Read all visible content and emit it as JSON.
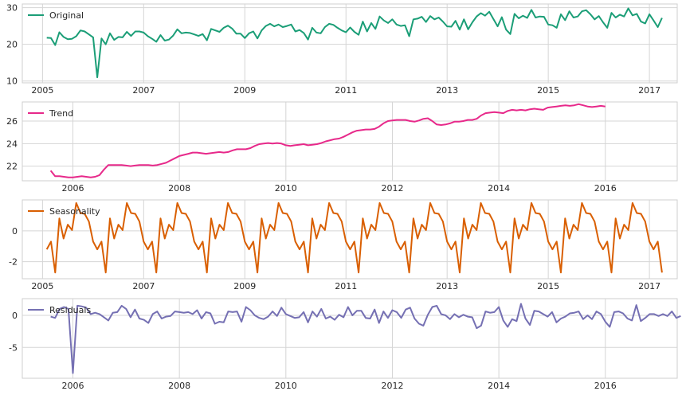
{
  "chart_data": [
    {
      "type": "line",
      "legend": "Original",
      "color": "#1b9e77",
      "x_ticks": [
        "2005",
        "2007",
        "2009",
        "2011",
        "2013",
        "2015",
        "2017"
      ],
      "y_ticks": [
        "10",
        "20",
        "30"
      ],
      "x_range": [
        2004.6,
        2017.55
      ],
      "y_range": [
        9.5,
        31
      ],
      "grid": true,
      "legend_position": "upper-left",
      "x_start": 2005.0833,
      "x_step": 0.08333,
      "y": [
        21.8,
        21.7,
        19.8,
        23.3,
        22.0,
        21.4,
        21.5,
        22.2,
        23.8,
        23.5,
        22.7,
        21.9,
        11.0,
        21.6,
        20.0,
        23.0,
        21.2,
        22.0,
        21.9,
        23.4,
        22.3,
        23.5,
        23.5,
        23.2,
        22.2,
        21.5,
        20.7,
        22.5,
        21.0,
        21.3,
        22.4,
        24.1,
        23.0,
        23.2,
        23.1,
        22.7,
        22.3,
        22.8,
        21.1,
        24.2,
        23.8,
        23.4,
        24.5,
        25.1,
        24.3,
        22.9,
        22.9,
        21.7,
        23.0,
        23.5,
        21.6,
        23.8,
        25.0,
        25.6,
        24.9,
        25.4,
        24.7,
        25.0,
        25.4,
        23.5,
        23.9,
        23.1,
        21.3,
        24.5,
        23.2,
        23.0,
        24.7,
        25.6,
        25.3,
        24.5,
        23.8,
        23.3,
        24.6,
        23.4,
        22.6,
        26.2,
        23.5,
        25.8,
        24.2,
        27.6,
        26.5,
        25.8,
        26.8,
        25.4,
        25.0,
        25.2,
        22.2,
        26.8,
        27.0,
        27.5,
        26.1,
        27.7,
        26.8,
        27.3,
        26.2,
        24.9,
        24.8,
        26.4,
        24.0,
        26.8,
        24.1,
        26.0,
        27.6,
        28.5,
        27.8,
        28.9,
        26.9,
        24.9,
        27.4,
        24.0,
        22.8,
        28.3,
        27.1,
        27.8,
        27.2,
        29.4,
        27.3,
        27.6,
        27.5,
        25.4,
        25.2,
        24.5,
        28.2,
        26.6,
        29.0,
        27.3,
        27.6,
        29.0,
        29.3,
        28.2,
        26.8,
        27.7,
        26.0,
        24.5,
        28.6,
        27.3,
        28.1,
        27.6,
        29.8,
        27.9,
        28.3,
        26.2,
        25.7,
        28.2,
        26.5,
        24.7,
        27.2
      ]
    },
    {
      "type": "line",
      "legend": "Trend",
      "color": "#e7298a",
      "x_ticks": [
        "2006",
        "2008",
        "2010",
        "2012",
        "2014",
        "2016"
      ],
      "y_ticks": [
        "22",
        "24",
        "26"
      ],
      "x_range": [
        2005.05,
        2017.35
      ],
      "y_range": [
        20.7,
        27.7
      ],
      "grid": true,
      "legend_position": "upper-left",
      "x_start": 2005.5833,
      "x_step": 0.08333,
      "y": [
        21.6,
        21.1,
        21.1,
        21.05,
        21.0,
        21.0,
        21.05,
        21.1,
        21.05,
        21.0,
        21.05,
        21.2,
        21.7,
        22.1,
        22.1,
        22.1,
        22.1,
        22.05,
        22.0,
        22.05,
        22.1,
        22.1,
        22.1,
        22.05,
        22.1,
        22.2,
        22.3,
        22.5,
        22.7,
        22.9,
        23.0,
        23.1,
        23.2,
        23.2,
        23.15,
        23.1,
        23.15,
        23.2,
        23.25,
        23.2,
        23.25,
        23.4,
        23.5,
        23.5,
        23.5,
        23.6,
        23.8,
        23.95,
        24.0,
        24.05,
        24.0,
        24.05,
        24.0,
        23.85,
        23.8,
        23.85,
        23.9,
        23.95,
        23.85,
        23.9,
        23.95,
        24.05,
        24.2,
        24.3,
        24.4,
        24.45,
        24.6,
        24.8,
        25.0,
        25.15,
        25.2,
        25.25,
        25.25,
        25.3,
        25.5,
        25.8,
        26.0,
        26.05,
        26.1,
        26.1,
        26.1,
        26.0,
        25.95,
        26.05,
        26.2,
        26.25,
        26.0,
        25.7,
        25.65,
        25.7,
        25.8,
        25.95,
        25.95,
        26.0,
        26.1,
        26.1,
        26.2,
        26.5,
        26.7,
        26.75,
        26.8,
        26.75,
        26.7,
        26.9,
        27.0,
        26.95,
        27.0,
        26.95,
        27.05,
        27.1,
        27.05,
        27.0,
        27.2,
        27.25,
        27.3,
        27.35,
        27.4,
        27.35,
        27.4,
        27.5,
        27.4,
        27.3,
        27.25,
        27.3,
        27.35,
        27.3
      ]
    },
    {
      "type": "line",
      "legend": "Seasonality",
      "color": "#d95f02",
      "x_ticks": [
        "2005",
        "2007",
        "2009",
        "2011",
        "2013",
        "2015",
        "2017"
      ],
      "y_ticks": [
        "-2",
        "0"
      ],
      "x_range": [
        2004.6,
        2017.55
      ],
      "y_range": [
        -3.1,
        2.0
      ],
      "grid": true,
      "legend_position": "upper-left",
      "x_start": 2005.0833,
      "x_step": 0.08333,
      "pattern": [
        -1.2,
        -0.7,
        -2.7,
        0.8,
        -0.5,
        0.4,
        0.05,
        1.8,
        1.15,
        1.1,
        0.6,
        -0.7
      ],
      "pattern_cycles": 12.25
    },
    {
      "type": "line",
      "legend": "Residuals",
      "color": "#7570b3",
      "x_ticks": [
        "2006",
        "2008",
        "2010",
        "2012",
        "2014",
        "2016"
      ],
      "y_ticks": [
        "-5",
        "0"
      ],
      "x_range": [
        2005.05,
        2017.35
      ],
      "y_range": [
        -9.8,
        2.6
      ],
      "grid": true,
      "legend_position": "upper-left",
      "x_start": 2005.5833,
      "x_step": 0.08333,
      "y": [
        -0.2,
        -0.4,
        1.0,
        1.3,
        1.0,
        -9.0,
        1.5,
        1.4,
        1.2,
        0.2,
        0.4,
        0.2,
        -0.3,
        -0.8,
        0.4,
        0.5,
        1.5,
        1.0,
        -0.3,
        0.9,
        -0.5,
        -0.7,
        -1.2,
        0.2,
        0.6,
        -0.5,
        -0.2,
        -0.1,
        0.6,
        0.5,
        0.4,
        0.5,
        0.2,
        0.8,
        -0.5,
        0.5,
        0.3,
        -1.3,
        -1.0,
        -1.1,
        0.6,
        0.5,
        0.6,
        -1.0,
        1.3,
        0.8,
        0.0,
        -0.4,
        -0.6,
        -0.2,
        0.6,
        -0.1,
        1.2,
        0.2,
        -0.1,
        -0.4,
        -0.3,
        0.5,
        -1.1,
        0.6,
        -0.2,
        1.0,
        -0.5,
        -0.2,
        -0.7,
        0.1,
        -0.3,
        1.3,
        0.0,
        0.7,
        0.7,
        -0.4,
        -0.5,
        0.9,
        -1.2,
        0.6,
        -0.4,
        0.8,
        0.5,
        -0.4,
        0.9,
        1.2,
        -0.5,
        -1.3,
        -1.6,
        0.1,
        1.3,
        1.5,
        0.2,
        0.0,
        -0.6,
        0.2,
        -0.3,
        0.1,
        -0.2,
        -0.3,
        -2.0,
        -1.6,
        0.6,
        0.4,
        0.5,
        1.3,
        -0.8,
        -1.8,
        -0.6,
        -0.9,
        1.8,
        -0.5,
        -1.5,
        0.7,
        0.6,
        0.2,
        -0.2,
        0.5,
        -1.1,
        -0.5,
        -0.2,
        0.3,
        0.4,
        0.6,
        -0.6,
        0.0,
        -0.6,
        0.6,
        0.2,
        -1.0,
        -1.8,
        0.5,
        0.6,
        0.3,
        -0.5,
        -0.8,
        1.6,
        -0.9,
        -0.4,
        0.2,
        0.2,
        -0.1,
        0.2,
        -0.1,
        0.6,
        -0.4,
        -0.1
      ]
    }
  ]
}
